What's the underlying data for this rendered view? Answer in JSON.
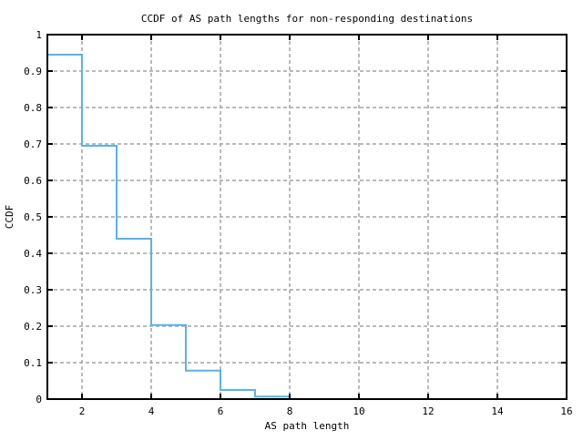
{
  "chart_data": {
    "type": "line",
    "subtype": "ccdf-step-function",
    "title": "CCDF of AS path lengths for non-responding destinations",
    "xlabel": "AS path length",
    "ylabel": "CCDF",
    "xlim": [
      1,
      16
    ],
    "ylim": [
      0,
      1
    ],
    "grid": true,
    "legend_position": "none",
    "xticks": [
      {
        "v": 2,
        "label": "2"
      },
      {
        "v": 4,
        "label": "4"
      },
      {
        "v": 6,
        "label": "6"
      },
      {
        "v": 8,
        "label": "8"
      },
      {
        "v": 10,
        "label": "10"
      },
      {
        "v": 12,
        "label": "12"
      },
      {
        "v": 14,
        "label": "14"
      },
      {
        "v": 16,
        "label": "16"
      }
    ],
    "yticks": [
      {
        "v": 0,
        "label": "0"
      },
      {
        "v": 0.1,
        "label": "0.1"
      },
      {
        "v": 0.2,
        "label": "0.2"
      },
      {
        "v": 0.3,
        "label": "0.3"
      },
      {
        "v": 0.4,
        "label": "0.4"
      },
      {
        "v": 0.5,
        "label": "0.5"
      },
      {
        "v": 0.6,
        "label": "0.6"
      },
      {
        "v": 0.7,
        "label": "0.7"
      },
      {
        "v": 0.8,
        "label": "0.8"
      },
      {
        "v": 0.9,
        "label": "0.9"
      },
      {
        "v": 1,
        "label": "1"
      }
    ],
    "series": [
      {
        "name": "ccdf",
        "step_mode": "post",
        "x": [
          1,
          2,
          3,
          4,
          5,
          6,
          7
        ],
        "y": [
          0.945,
          0.695,
          0.44,
          0.203,
          0.078,
          0.025,
          0.007
        ],
        "x_end": 8
      }
    ],
    "colors": {
      "line": "#56b4e9",
      "grid": "#a3a3a3",
      "axis": "#000000",
      "text": "#000000",
      "background": "#ffffff"
    }
  }
}
